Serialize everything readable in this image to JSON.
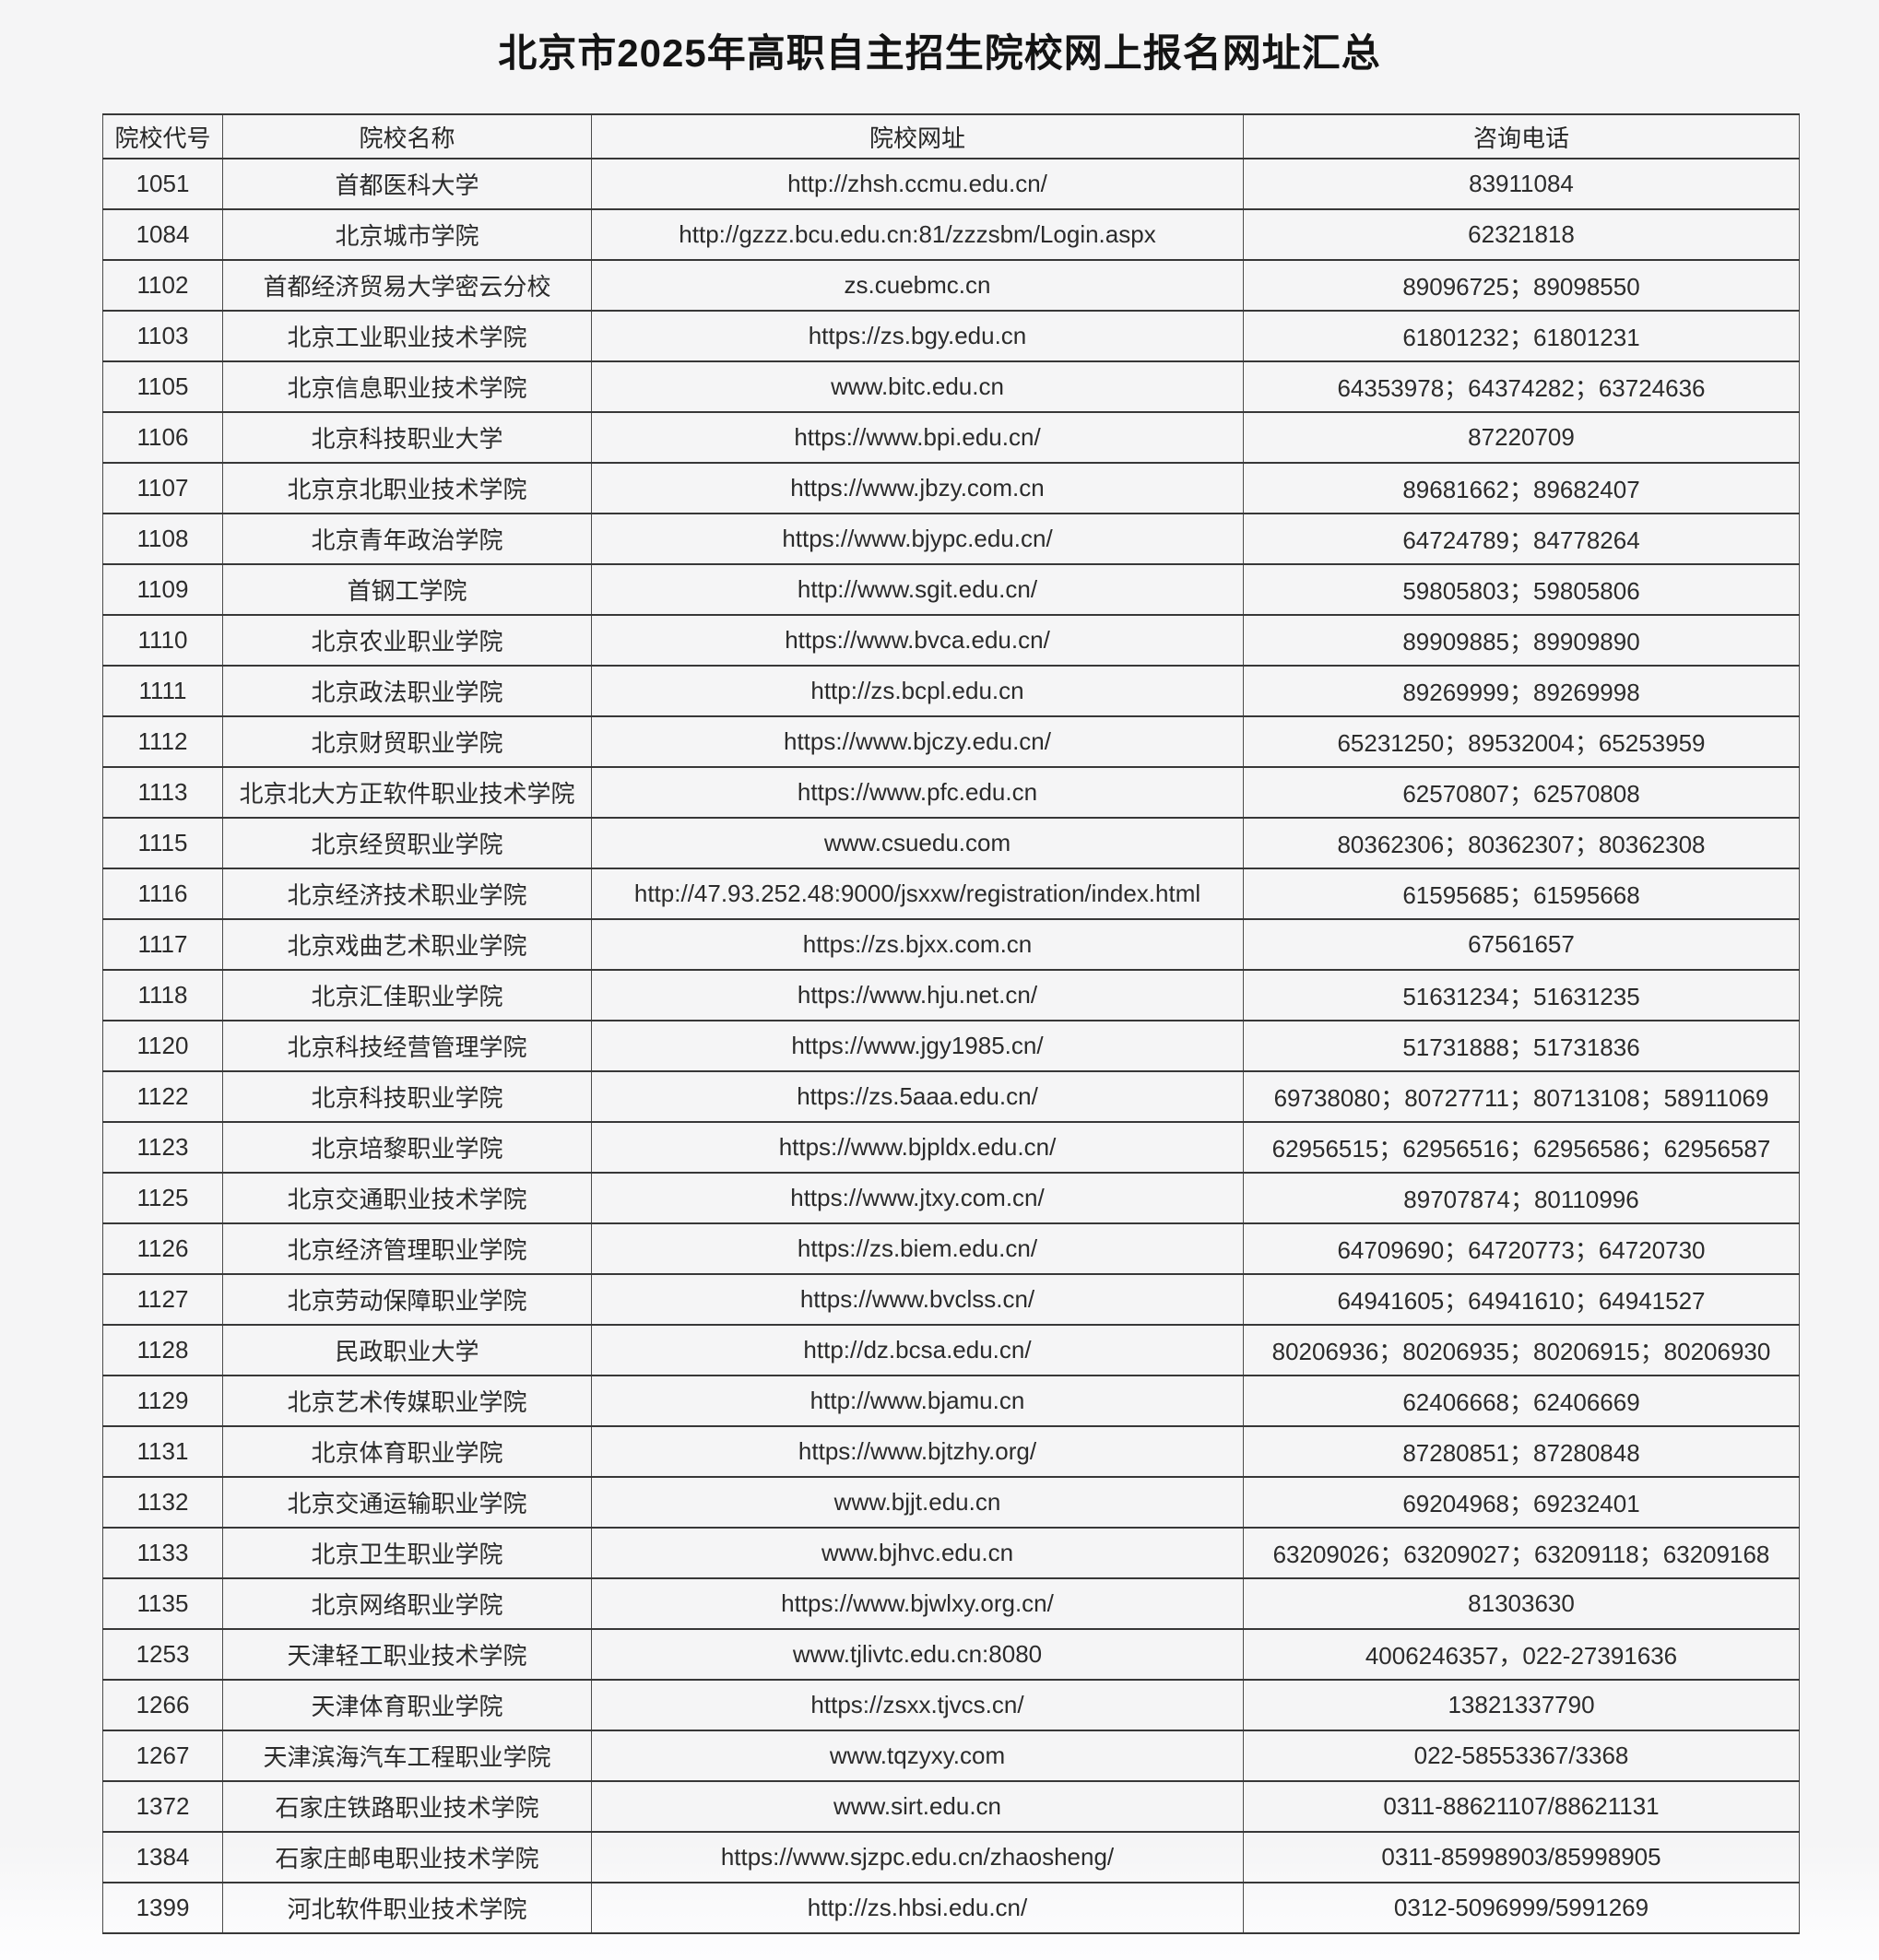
{
  "title": "北京市2025年高职自主招生院校网上报名网址汇总",
  "colors": {
    "page_background": "#f5f5f6",
    "table_border": "#383838",
    "text": "#2b2b2b"
  },
  "table": {
    "headers": [
      "院校代号",
      "院校名称",
      "院校网址",
      "咨询电话"
    ],
    "rows": [
      {
        "code": "1051",
        "name": "首都医科大学",
        "url": "http://zhsh.ccmu.edu.cn/",
        "phone": "83911084"
      },
      {
        "code": "1084",
        "name": "北京城市学院",
        "url": "http://gzzz.bcu.edu.cn:81/zzzsbm/Login.aspx",
        "phone": "62321818"
      },
      {
        "code": "1102",
        "name": "首都经济贸易大学密云分校",
        "url": "zs.cuebmc.cn",
        "phone": "89096725；89098550"
      },
      {
        "code": "1103",
        "name": "北京工业职业技术学院",
        "url": "https://zs.bgy.edu.cn",
        "phone": "61801232；61801231"
      },
      {
        "code": "1105",
        "name": "北京信息职业技术学院",
        "url": "www.bitc.edu.cn",
        "phone": "64353978；64374282；63724636"
      },
      {
        "code": "1106",
        "name": "北京科技职业大学",
        "url": "https://www.bpi.edu.cn/",
        "phone": "87220709"
      },
      {
        "code": "1107",
        "name": "北京京北职业技术学院",
        "url": "https://www.jbzy.com.cn",
        "phone": "89681662；89682407"
      },
      {
        "code": "1108",
        "name": "北京青年政治学院",
        "url": "https://www.bjypc.edu.cn/",
        "phone": "64724789；84778264"
      },
      {
        "code": "1109",
        "name": "首钢工学院",
        "url": "http://www.sgit.edu.cn/",
        "phone": "59805803；59805806"
      },
      {
        "code": "1110",
        "name": "北京农业职业学院",
        "url": "https://www.bvca.edu.cn/",
        "phone": "89909885；89909890"
      },
      {
        "code": "1111",
        "name": "北京政法职业学院",
        "url": "http://zs.bcpl.edu.cn",
        "phone": "89269999；89269998"
      },
      {
        "code": "1112",
        "name": "北京财贸职业学院",
        "url": "https://www.bjczy.edu.cn/",
        "phone": "65231250；89532004；65253959"
      },
      {
        "code": "1113",
        "name": "北京北大方正软件职业技术学院",
        "url": "https://www.pfc.edu.cn",
        "phone": "62570807；62570808"
      },
      {
        "code": "1115",
        "name": "北京经贸职业学院",
        "url": "www.csuedu.com",
        "phone": "80362306；80362307；80362308"
      },
      {
        "code": "1116",
        "name": "北京经济技术职业学院",
        "url": "http://47.93.252.48:9000/jsxxw/registration/index.html",
        "phone": "61595685；61595668"
      },
      {
        "code": "1117",
        "name": "北京戏曲艺术职业学院",
        "url": "https://zs.bjxx.com.cn",
        "phone": "67561657"
      },
      {
        "code": "1118",
        "name": "北京汇佳职业学院",
        "url": "https://www.hju.net.cn/",
        "phone": "51631234；51631235"
      },
      {
        "code": "1120",
        "name": "北京科技经营管理学院",
        "url": "https://www.jgy1985.cn/",
        "phone": "51731888；51731836"
      },
      {
        "code": "1122",
        "name": "北京科技职业学院",
        "url": "https://zs.5aaa.edu.cn/",
        "phone": "69738080；80727711；80713108；58911069"
      },
      {
        "code": "1123",
        "name": "北京培黎职业学院",
        "url": "https://www.bjpldx.edu.cn/",
        "phone": "62956515；62956516；62956586；62956587"
      },
      {
        "code": "1125",
        "name": "北京交通职业技术学院",
        "url": "https://www.jtxy.com.cn/",
        "phone": "89707874；80110996"
      },
      {
        "code": "1126",
        "name": "北京经济管理职业学院",
        "url": "https://zs.biem.edu.cn/",
        "phone": "64709690；64720773；64720730"
      },
      {
        "code": "1127",
        "name": "北京劳动保障职业学院",
        "url": "https://www.bvclss.cn/",
        "phone": "64941605；64941610；64941527"
      },
      {
        "code": "1128",
        "name": "民政职业大学",
        "url": "http://dz.bcsa.edu.cn/",
        "phone": "80206936；80206935；80206915；80206930"
      },
      {
        "code": "1129",
        "name": "北京艺术传媒职业学院",
        "url": "http://www.bjamu.cn",
        "phone": "62406668；62406669"
      },
      {
        "code": "1131",
        "name": "北京体育职业学院",
        "url": "https://www.bjtzhy.org/",
        "phone": "87280851；87280848"
      },
      {
        "code": "1132",
        "name": "北京交通运输职业学院",
        "url": "www.bjjt.edu.cn",
        "phone": "69204968；69232401"
      },
      {
        "code": "1133",
        "name": "北京卫生职业学院",
        "url": "www.bjhvc.edu.cn",
        "phone": "63209026；63209027；63209118；63209168"
      },
      {
        "code": "1135",
        "name": "北京网络职业学院",
        "url": "https://www.bjwlxy.org.cn/",
        "phone": "81303630"
      },
      {
        "code": "1253",
        "name": "天津轻工职业技术学院",
        "url": "www.tjlivtc.edu.cn:8080",
        "phone": "4006246357，022-27391636"
      },
      {
        "code": "1266",
        "name": "天津体育职业学院",
        "url": "https://zsxx.tjvcs.cn/",
        "phone": "13821337790"
      },
      {
        "code": "1267",
        "name": "天津滨海汽车工程职业学院",
        "url": "www.tqzyxy.com",
        "phone": "022-58553367/3368"
      },
      {
        "code": "1372",
        "name": "石家庄铁路职业技术学院",
        "url": "www.sirt.edu.cn",
        "phone": "0311-88621107/88621131"
      },
      {
        "code": "1384",
        "name": "石家庄邮电职业技术学院",
        "url": "https://www.sjzpc.edu.cn/zhaosheng/",
        "phone": "0311-85998903/85998905"
      },
      {
        "code": "1399",
        "name": "河北软件职业技术学院",
        "url": "http://zs.hbsi.edu.cn/",
        "phone": "0312-5096999/5991269"
      }
    ]
  }
}
